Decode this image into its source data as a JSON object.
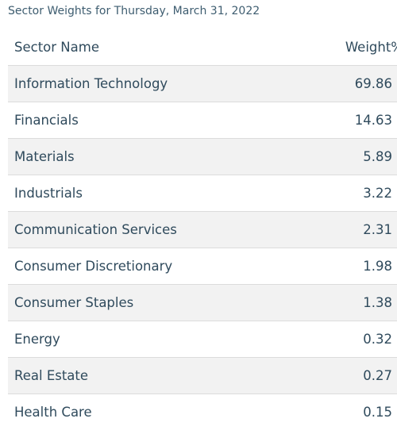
{
  "caption": "Sector Weights for Thursday, March 31, 2022",
  "table": {
    "headers": {
      "name": "Sector Name",
      "weight": "Weight%"
    },
    "rows": [
      {
        "name": "Information Technology",
        "weight": "69.86"
      },
      {
        "name": "Financials",
        "weight": "14.63"
      },
      {
        "name": "Materials",
        "weight": "5.89"
      },
      {
        "name": "Industrials",
        "weight": "3.22"
      },
      {
        "name": "Communication Services",
        "weight": "2.31"
      },
      {
        "name": "Consumer Discretionary",
        "weight": "1.98"
      },
      {
        "name": "Consumer Staples",
        "weight": "1.38"
      },
      {
        "name": "Energy",
        "weight": "0.32"
      },
      {
        "name": "Real Estate",
        "weight": "0.27"
      },
      {
        "name": "Health Care",
        "weight": "0.15"
      }
    ]
  }
}
